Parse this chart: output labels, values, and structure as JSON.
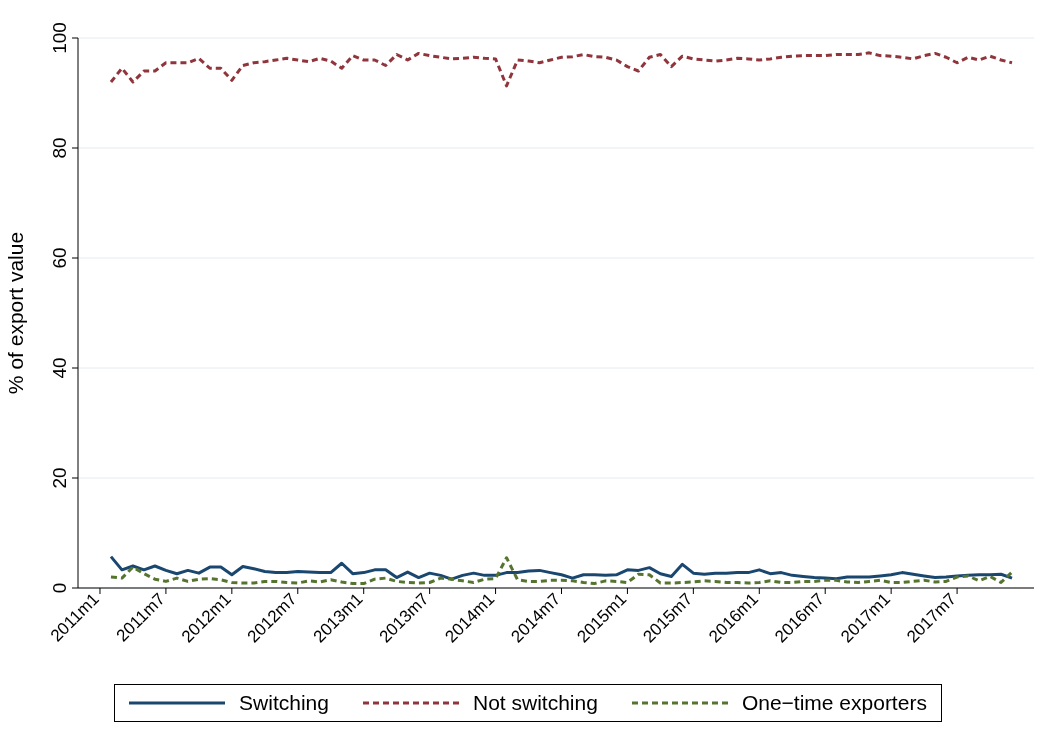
{
  "chart_data": {
    "type": "line",
    "ylabel": "% of export value",
    "x": [
      "2011-02",
      "2011-03",
      "2011-04",
      "2011-05",
      "2011-06",
      "2011-07",
      "2011-08",
      "2011-09",
      "2011-10",
      "2011-11",
      "2011-12",
      "2012-01",
      "2012-02",
      "2012-03",
      "2012-04",
      "2012-05",
      "2012-06",
      "2012-07",
      "2012-08",
      "2012-09",
      "2012-10",
      "2012-11",
      "2012-12",
      "2013-01",
      "2013-02",
      "2013-03",
      "2013-04",
      "2013-05",
      "2013-06",
      "2013-07",
      "2013-08",
      "2013-09",
      "2013-10",
      "2013-11",
      "2013-12",
      "2014-01",
      "2014-02",
      "2014-03",
      "2014-04",
      "2014-05",
      "2014-06",
      "2014-07",
      "2014-08",
      "2014-09",
      "2014-10",
      "2014-11",
      "2014-12",
      "2015-01",
      "2015-02",
      "2015-03",
      "2015-04",
      "2015-05",
      "2015-06",
      "2015-07",
      "2015-08",
      "2015-09",
      "2015-10",
      "2015-11",
      "2015-12",
      "2016-01",
      "2016-02",
      "2016-03",
      "2016-04",
      "2016-05",
      "2016-06",
      "2016-07",
      "2016-08",
      "2016-09",
      "2016-10",
      "2016-11",
      "2016-12",
      "2017-01",
      "2017-02",
      "2017-03",
      "2017-04",
      "2017-05",
      "2017-06",
      "2017-07",
      "2017-08",
      "2017-09",
      "2017-10",
      "2017-11",
      "2017-12"
    ],
    "series": [
      {
        "name": "Switching",
        "color": "#1a476f",
        "line_style": "solid",
        "values": [
          5.7,
          3.3,
          4,
          3.3,
          4,
          3.2,
          2.6,
          3.2,
          2.7,
          3.8,
          3.8,
          2.4,
          3.9,
          3.5,
          3,
          2.8,
          2.8,
          3,
          2.9,
          2.8,
          2.8,
          4.5,
          2.6,
          2.8,
          3.3,
          3.3,
          1.9,
          2.9,
          1.9,
          2.7,
          2.3,
          1.6,
          2.3,
          2.7,
          2.3,
          2.3,
          2.8,
          2.8,
          3.1,
          3.2,
          2.8,
          2.4,
          1.8,
          2.4,
          2.4,
          2.3,
          2.4,
          3.3,
          3.2,
          3.7,
          2.6,
          2.1,
          4.3,
          2.7,
          2.5,
          2.7,
          2.7,
          2.8,
          2.8,
          3.3,
          2.6,
          2.8,
          2.3,
          2.1,
          1.9,
          1.8,
          1.7,
          2,
          2,
          2,
          2.2,
          2.4,
          2.8,
          2.5,
          2.2,
          1.9,
          2,
          2.2,
          2.3,
          2.4,
          2.4,
          2.5,
          1.8
        ]
      },
      {
        "name": "Not switching",
        "color": "#90353b",
        "line_style": "dashed",
        "values": [
          92,
          94.5,
          92,
          94,
          94,
          95.5,
          95.5,
          95.5,
          96.3,
          94.5,
          94.5,
          92.3,
          95,
          95.5,
          95.7,
          96,
          96.3,
          96,
          95.7,
          96.3,
          95.8,
          94.5,
          96.8,
          96,
          96,
          95,
          97,
          96,
          97.2,
          96.8,
          96.5,
          96.2,
          96.3,
          96.5,
          96.3,
          96.2,
          91.3,
          96,
          95.8,
          95.5,
          96,
          96.5,
          96.6,
          97,
          96.6,
          96.5,
          96,
          94.8,
          94,
          96.5,
          97,
          94.8,
          96.7,
          96.2,
          96,
          95.8,
          96,
          96.3,
          96.2,
          96,
          96.2,
          96.5,
          96.7,
          96.8,
          96.8,
          96.8,
          97,
          97,
          97,
          97.3,
          96.8,
          96.7,
          96.5,
          96.2,
          96.8,
          97.2,
          96.5,
          95.5,
          96.5,
          96,
          96.7,
          96,
          95.5
        ]
      },
      {
        "name": "One−time exporters",
        "color": "#55752f",
        "line_style": "dashed",
        "values": [
          2,
          1.8,
          3.8,
          2.6,
          1.6,
          1.2,
          1.8,
          1.2,
          1.6,
          1.7,
          1.5,
          1,
          0.9,
          0.9,
          1.2,
          1.2,
          1,
          0.9,
          1.3,
          1.1,
          1.5,
          1.1,
          0.8,
          0.8,
          1.6,
          1.8,
          1.2,
          1,
          0.9,
          1,
          1.8,
          1.6,
          1.3,
          1,
          1.6,
          1.7,
          5.5,
          1.5,
          1.2,
          1.2,
          1.4,
          1.4,
          1.3,
          1,
          0.8,
          1.3,
          1.2,
          1,
          2.5,
          2.4,
          0.9,
          0.9,
          1,
          1.1,
          1.3,
          1.2,
          1,
          1,
          0.9,
          1,
          1.3,
          1,
          1,
          1.2,
          1.2,
          1.4,
          1.4,
          1.1,
          1,
          1.2,
          1.4,
          1,
          1,
          1.2,
          1.4,
          1.1,
          1.2,
          2,
          2.2,
          1.3,
          2.1,
          1,
          2.9
        ]
      }
    ],
    "xlim": [
      "2010-11",
      "2018-02"
    ],
    "xticks": [
      {
        "value": "2011-01",
        "label": "2011m1"
      },
      {
        "value": "2011-07",
        "label": "2011m7"
      },
      {
        "value": "2012-01",
        "label": "2012m1"
      },
      {
        "value": "2012-07",
        "label": "2012m7"
      },
      {
        "value": "2013-01",
        "label": "2013m1"
      },
      {
        "value": "2013-07",
        "label": "2013m7"
      },
      {
        "value": "2014-01",
        "label": "2014m1"
      },
      {
        "value": "2014-07",
        "label": "2014m7"
      },
      {
        "value": "2015-01",
        "label": "2015m1"
      },
      {
        "value": "2015-07",
        "label": "2015m7"
      },
      {
        "value": "2016-01",
        "label": "2016m1"
      },
      {
        "value": "2016-07",
        "label": "2016m7"
      },
      {
        "value": "2017-01",
        "label": "2017m1"
      },
      {
        "value": "2017-07",
        "label": "2017m7"
      }
    ],
    "ylim": [
      0,
      100
    ],
    "yticks": [
      0,
      20,
      40,
      60,
      80,
      100
    ],
    "grid": "y",
    "legend": "bottom",
    "marker": "none"
  }
}
